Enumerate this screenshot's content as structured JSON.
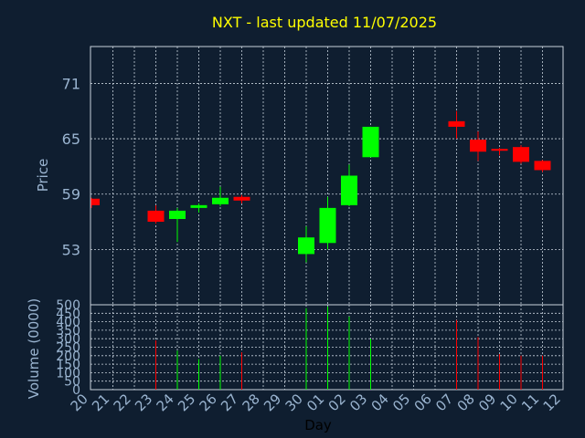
{
  "chart_data": {
    "type": "candlestick",
    "title": "NXT - last updated 11/07/2025",
    "xlabel": "Day",
    "ylabel_price": "Price",
    "ylabel_volume": "Volume (0000)",
    "price_ylim": [
      47,
      75
    ],
    "price_yticks": [
      53,
      59,
      65,
      71
    ],
    "volume_ylim": [
      0,
      500
    ],
    "volume_yticks": [
      0,
      50,
      100,
      150,
      200,
      250,
      300,
      350,
      400,
      450,
      500
    ],
    "grid": true,
    "x_labels": [
      "20",
      "21",
      "22",
      "23",
      "24",
      "25",
      "26",
      "27",
      "28",
      "29",
      "30",
      "01",
      "02",
      "03",
      "04",
      "05",
      "06",
      "07",
      "08",
      "09",
      "10",
      "11",
      "12"
    ],
    "candles": [
      {
        "day": "20",
        "open": 58.5,
        "high": 58.6,
        "low": 57.5,
        "close": 57.8,
        "volume": 0
      },
      {
        "day": "23",
        "open": 57.2,
        "high": 57.8,
        "low": 55.8,
        "close": 56.0,
        "volume": 290
      },
      {
        "day": "24",
        "open": 56.3,
        "high": 57.5,
        "low": 53.8,
        "close": 57.2,
        "volume": 230
      },
      {
        "day": "25",
        "open": 57.5,
        "high": 58.0,
        "low": 57.0,
        "close": 57.8,
        "volume": 180
      },
      {
        "day": "26",
        "open": 57.9,
        "high": 59.8,
        "low": 57.7,
        "close": 58.6,
        "volume": 200
      },
      {
        "day": "27",
        "open": 58.7,
        "high": 58.9,
        "low": 58.0,
        "close": 58.3,
        "volume": 220
      },
      {
        "day": "30",
        "open": 52.5,
        "high": 55.5,
        "low": 51.6,
        "close": 54.3,
        "volume": 480
      },
      {
        "day": "01",
        "open": 53.7,
        "high": 58.7,
        "low": 53.0,
        "close": 57.5,
        "volume": 490
      },
      {
        "day": "02",
        "open": 57.8,
        "high": 62.2,
        "low": 57.7,
        "close": 61.0,
        "volume": 430
      },
      {
        "day": "03",
        "open": 63.0,
        "high": 66.3,
        "low": 63.0,
        "close": 66.3,
        "volume": 300
      },
      {
        "day": "07",
        "open": 66.9,
        "high": 68.0,
        "low": 65.0,
        "close": 66.3,
        "volume": 410
      },
      {
        "day": "08",
        "open": 64.9,
        "high": 65.8,
        "low": 62.6,
        "close": 63.6,
        "volume": 310
      },
      {
        "day": "09",
        "open": 63.9,
        "high": 64.0,
        "low": 63.2,
        "close": 63.7,
        "volume": 210
      },
      {
        "day": "10",
        "open": 64.1,
        "high": 64.3,
        "low": 62.3,
        "close": 62.5,
        "volume": 200
      },
      {
        "day": "11",
        "open": 62.6,
        "high": 62.7,
        "low": 61.4,
        "close": 61.6,
        "volume": 200
      }
    ],
    "colors": {
      "up": "#00ff00",
      "down": "#ff0000"
    }
  }
}
